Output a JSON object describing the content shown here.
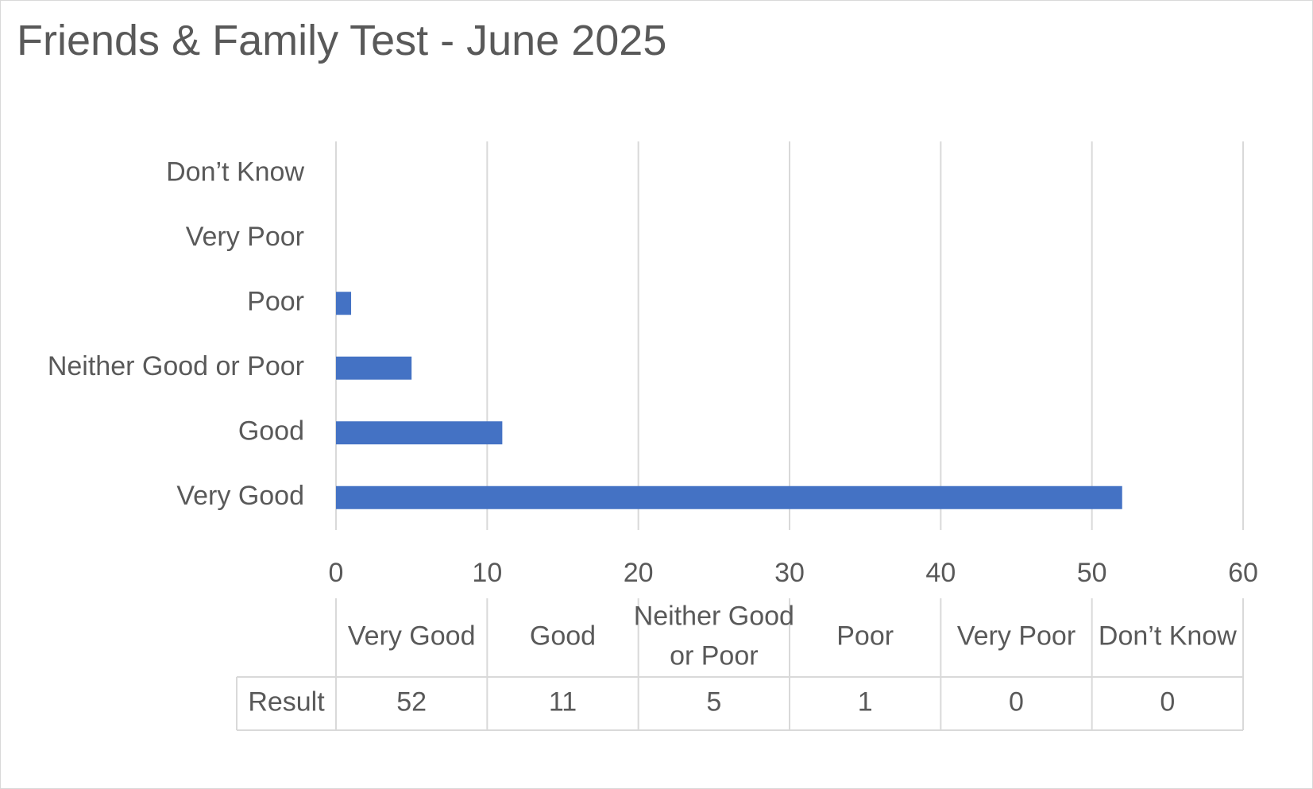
{
  "chart_data": {
    "type": "bar",
    "orientation": "horizontal",
    "title": "Friends & Family Test - June 2025",
    "categories": [
      "Very Good",
      "Good",
      "Neither Good or Poor",
      "Poor",
      "Very Poor",
      "Don’t Know"
    ],
    "table_category_lines": [
      [
        "Very Good"
      ],
      [
        "Good"
      ],
      [
        "Neither Good",
        "or Poor"
      ],
      [
        "Poor"
      ],
      [
        "Very Poor"
      ],
      [
        "Don’t Know"
      ]
    ],
    "series": [
      {
        "name": "Result",
        "values": [
          52,
          11,
          5,
          1,
          0,
          0
        ]
      }
    ],
    "xlim": [
      0,
      60
    ],
    "x_ticks": [
      "0",
      "10",
      "20",
      "30",
      "40",
      "50",
      "60"
    ],
    "xlabel": "",
    "ylabel": "",
    "grid": true,
    "data_table": true,
    "legend": "none"
  },
  "colors": {
    "bar": "#4472c4",
    "grid": "#d9d9d9",
    "text": "#595959",
    "frame": "#d9d9d9"
  }
}
